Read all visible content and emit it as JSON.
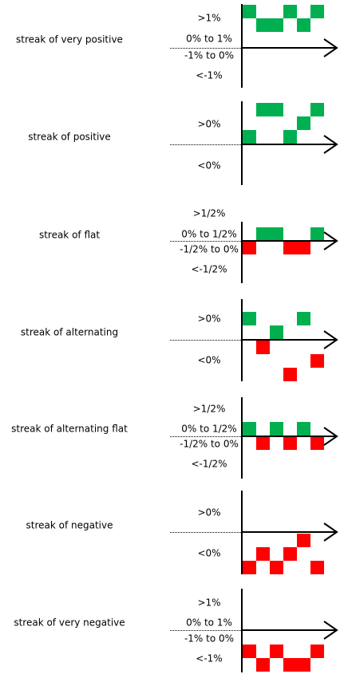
{
  "panels": [
    {
      "title": "streak of very positive",
      "levels": [
        ">1%",
        "0% to 1%",
        "-1% to 0%",
        "<-1%"
      ]
    },
    {
      "title": "streak of positive",
      "levels": [
        ">0%",
        "<0%"
      ]
    },
    {
      "title": "streak of flat",
      "levels": [
        ">1/2%",
        "0% to 1/2%",
        "-1/2% to 0%",
        "<-1/2%"
      ]
    },
    {
      "title": "streak of alternating",
      "levels": [
        ">0%",
        "<0%"
      ]
    },
    {
      "title": "streak of alternating flat",
      "levels": [
        ">1/2%",
        "0% to 1/2%",
        "-1/2% to 0%",
        "<-1/2%"
      ]
    },
    {
      "title": "streak of negative",
      "levels": [
        ">0%",
        "<0%"
      ]
    },
    {
      "title": "streak of very negative",
      "levels": [
        ">1%",
        "0% to 1%",
        "-1% to 0%",
        "<-1%"
      ]
    }
  ]
}
